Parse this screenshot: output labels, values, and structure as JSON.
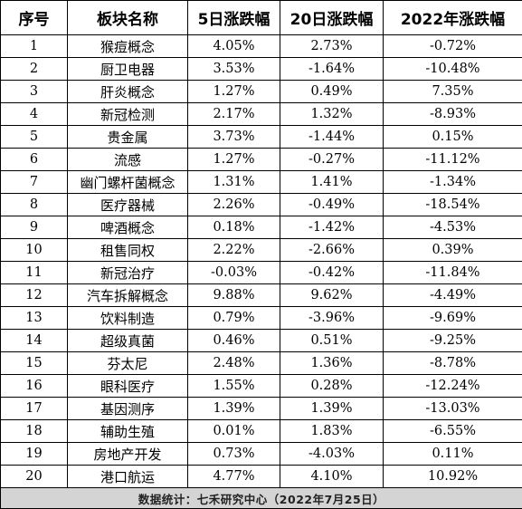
{
  "table": {
    "headers": [
      "序号",
      "板块名称",
      "5日涨跌幅",
      "20日涨跌幅",
      "2022年涨跌幅"
    ],
    "rows": [
      [
        "1",
        "猴痘概念",
        "4.05%",
        "2.73%",
        "-0.72%"
      ],
      [
        "2",
        "厨卫电器",
        "3.53%",
        "-1.64%",
        "-10.48%"
      ],
      [
        "3",
        "肝炎概念",
        "1.27%",
        "0.49%",
        "7.35%"
      ],
      [
        "4",
        "新冠检测",
        "2.17%",
        "1.32%",
        "-8.93%"
      ],
      [
        "5",
        "贵金属",
        "3.73%",
        "-1.44%",
        "0.15%"
      ],
      [
        "6",
        "流感",
        "1.27%",
        "-0.27%",
        "-11.12%"
      ],
      [
        "7",
        "幽门螺杆菌概念",
        "1.31%",
        "1.41%",
        "-1.34%"
      ],
      [
        "8",
        "医疗器械",
        "2.26%",
        "-0.49%",
        "-18.54%"
      ],
      [
        "9",
        "啤酒概念",
        "0.18%",
        "-1.42%",
        "-4.53%"
      ],
      [
        "10",
        "租售同权",
        "2.22%",
        "-2.66%",
        "0.39%"
      ],
      [
        "11",
        "新冠治疗",
        "-0.03%",
        "-0.42%",
        "-11.84%"
      ],
      [
        "12",
        "汽车拆解概念",
        "9.88%",
        "9.62%",
        "-4.49%"
      ],
      [
        "13",
        "饮料制造",
        "0.79%",
        "-3.96%",
        "-9.69%"
      ],
      [
        "14",
        "超级真菌",
        "0.46%",
        "0.51%",
        "-9.25%"
      ],
      [
        "15",
        "芬太尼",
        "2.48%",
        "1.36%",
        "-8.78%"
      ],
      [
        "16",
        "眼科医疗",
        "1.55%",
        "0.28%",
        "-12.24%"
      ],
      [
        "17",
        "基因测序",
        "1.39%",
        "1.39%",
        "-13.03%"
      ],
      [
        "18",
        "辅助生殖",
        "0.01%",
        "1.83%",
        "-6.55%"
      ],
      [
        "19",
        "房地产开发",
        "0.73%",
        "-4.03%",
        "0.11%"
      ],
      [
        "20",
        "港口航运",
        "4.77%",
        "4.10%",
        "10.92%"
      ]
    ],
    "footer": "数据统计：七禾研究中心（2022年7月25日）"
  },
  "colors": {
    "border": "#000000",
    "footer_bg": "#d4d4d4",
    "text": "#000000"
  }
}
